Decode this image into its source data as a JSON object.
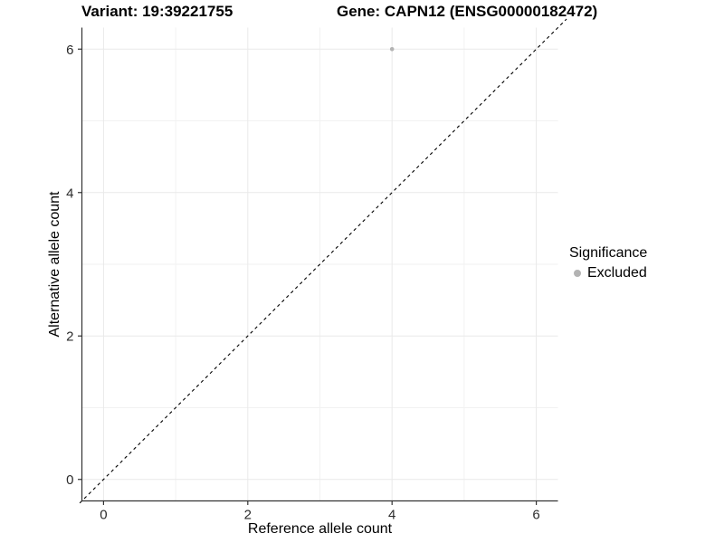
{
  "figure": {
    "title_left": "Variant: 19:39221755",
    "title_right": "Gene: CAPN12 (ENSG00000182472)"
  },
  "chart_data": {
    "type": "scatter",
    "title": "Variant: 19:39221755",
    "subtitle": "Gene: CAPN12 (ENSG00000182472)",
    "xlabel": "Reference allele count",
    "ylabel": "Alternative allele count",
    "xlim": [
      -0.3,
      6.3
    ],
    "ylim": [
      -0.3,
      6.3
    ],
    "x_ticks": [
      0,
      2,
      4,
      6
    ],
    "y_ticks": [
      0,
      2,
      4,
      6
    ],
    "x_minor_ticks": [
      1,
      3,
      5
    ],
    "y_minor_ticks": [
      1,
      3,
      5
    ],
    "grid": true,
    "reference_line": {
      "type": "identity_y_equals_x",
      "style": "dashed",
      "color": "#000000"
    },
    "series": [
      {
        "name": "Excluded",
        "color": "#b3b3b3",
        "points": [
          {
            "x": 4,
            "y": 6
          }
        ]
      }
    ],
    "legend": {
      "title": "Significance",
      "position": "right",
      "entries": [
        {
          "label": "Excluded",
          "color": "#b3b3b3",
          "marker": "circle"
        }
      ]
    }
  },
  "colors": {
    "background": "#ffffff",
    "grid_major": "#e9e9e9",
    "grid_minor": "#f2f2f2",
    "axis_line": "#333333",
    "tick_mark": "#333333",
    "tick_label": "#2b2b2b",
    "point": "#b3b3b3",
    "reference_line": "#000000"
  }
}
